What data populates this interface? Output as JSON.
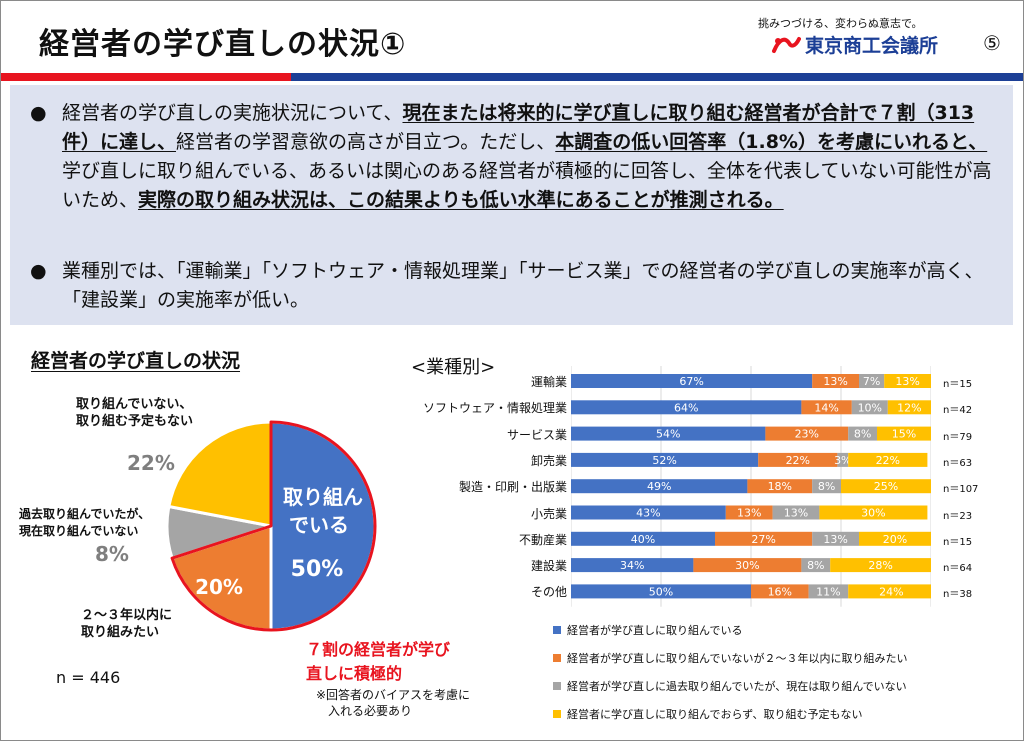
{
  "header": {
    "title": "経営者の学び直しの状況①",
    "slogan": "挑みつづける、変わらぬ意志で。",
    "logo_text": "東京商工会議所",
    "page_number": "⑤"
  },
  "colors": {
    "blue": "#4472c4",
    "orange": "#ed7d31",
    "gray": "#a5a5a5",
    "yellow": "#ffc000",
    "accent_red": "#e8141f",
    "navy": "#1c3f96"
  },
  "summary": {
    "bullet1": [
      {
        "t": "経営者の学び直しの実施状況について、",
        "u": false
      },
      {
        "t": "現在または将来的に学び直しに取り組む経営者が合計で７割（313件）に達し、",
        "u": true
      },
      {
        "t": "経営者の学習意欲の高さが目立つ。ただし、",
        "u": false
      },
      {
        "t": "本調査の低い回答率（1.8%）を考慮にいれると、",
        "u": true
      },
      {
        "t": "学び直しに取り組んでいる、あるいは関心のある経営者が積極的に回答し、全体を代表していない可能性が高いため、",
        "u": false
      },
      {
        "t": "実際の取り組み状況は、この結果よりも低い水準にあることが推測される。",
        "u": true
      }
    ],
    "bullet2": "業種別では、「運輸業」「ソフトウェア・情報処理業」「サービス業」での経営者の学び直しの実施率が高く、「建設業」の実施率が低い。"
  },
  "pie": {
    "title": "経営者の学び直しの状況",
    "slices": [
      {
        "key": "doing",
        "value": 50,
        "label": "取り組んでいる",
        "pct": "50%"
      },
      {
        "key": "plan",
        "value": 20,
        "label": "２～３年以内に\n取り組みたい",
        "pct": "20%"
      },
      {
        "key": "past",
        "value": 8,
        "label": "過去取り組んでいたが、\n現在取り組んでいない",
        "pct": "8%"
      },
      {
        "key": "none",
        "value": 22,
        "label": "取り組んでいない、\n取り組む予定もない",
        "pct": "22%"
      }
    ],
    "inner_label_1": "取り組ん",
    "inner_label_2": "でいる",
    "n": "n = 446",
    "highlight_1": "７割の経営者が学び",
    "highlight_2": "直しに積極的",
    "footnote_1": "※回答者のバイアスを考慮に",
    "footnote_2": "入れる必要あり"
  },
  "chart_data": {
    "type": "bar",
    "orientation": "horizontal-stacked-100",
    "title": "<業種別>",
    "categories": [
      "運輸業",
      "ソフトウェア・情報処理業",
      "サービス業",
      "卸売業",
      "製造・印刷・出版業",
      "小売業",
      "不動産業",
      "建設業",
      "その他"
    ],
    "n_labels": [
      "n＝15",
      "n＝42",
      "n＝79",
      "n＝63",
      "n＝107",
      "n＝23",
      "n＝15",
      "n＝64",
      "n＝38"
    ],
    "series": [
      {
        "name": "経営者が学び直しに取り組んでいる",
        "color": "#4472c4",
        "values": [
          67,
          64,
          54,
          52,
          49,
          43,
          40,
          34,
          50
        ]
      },
      {
        "name": "経営者が学び直しに取り組んでいないが２～３年以内に取り組みたい",
        "color": "#ed7d31",
        "values": [
          13,
          14,
          23,
          22,
          18,
          13,
          27,
          30,
          16
        ]
      },
      {
        "name": "経営者が学び直しに過去取り組んでいたが、現在は取り組んでいない",
        "color": "#a5a5a5",
        "values": [
          7,
          10,
          8,
          3,
          8,
          13,
          13,
          8,
          11
        ]
      },
      {
        "name": "経営者に学び直しに取り組んでおらず、取り組む予定もない",
        "color": "#ffc000",
        "values": [
          13,
          12,
          15,
          22,
          25,
          30,
          20,
          28,
          24
        ]
      }
    ],
    "xlim": [
      0,
      100
    ],
    "grid": true
  }
}
